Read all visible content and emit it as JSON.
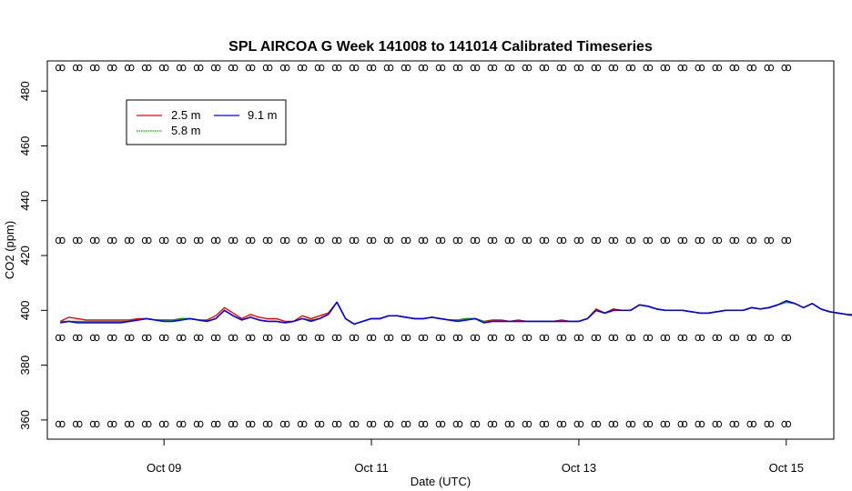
{
  "chart_data": {
    "type": "line",
    "title": "SPL AIRCOA G  Week 141008 to 141014  Calibrated Timeseries",
    "xlabel": "Date (UTC)",
    "ylabel": "CO2 (ppm)",
    "xlim": [
      "2014-10-07T21:00",
      "2014-10-15T11:00"
    ],
    "ylim": [
      353,
      491
    ],
    "x_ticks": [
      {
        "label": "Oct 09",
        "date": "2014-10-09T00:00"
      },
      {
        "label": "Oct 11",
        "date": "2014-10-11T00:00"
      },
      {
        "label": "Oct 13",
        "date": "2014-10-13T00:00"
      },
      {
        "label": "Oct 15",
        "date": "2014-10-15T00:00"
      }
    ],
    "y_ticks": [
      360,
      380,
      400,
      420,
      440,
      460,
      480
    ],
    "grid": false,
    "legend_position": "top-left",
    "legend": [
      {
        "label": "2.5 m",
        "color": "#ff0000"
      },
      {
        "label": "5.8 m",
        "color": "#00aa00"
      },
      {
        "label": "9.1 m",
        "color": "#0000ff"
      }
    ],
    "x_start": "2014-10-08T00:00",
    "x_step_hours": 2,
    "series": [
      {
        "name": "2.5 m",
        "color": "#ff0000",
        "values": [
          396,
          397.5,
          397,
          396.5,
          396.5,
          396.5,
          396.5,
          396.5,
          396.5,
          397,
          397,
          396.5,
          396.5,
          396.5,
          397,
          397,
          396.5,
          396.5,
          398,
          401,
          399,
          397,
          398.5,
          397.5,
          397,
          397,
          396,
          396,
          398,
          397,
          398,
          399,
          403,
          397,
          395,
          396,
          397,
          397,
          398,
          398,
          397.5,
          397,
          397,
          397.5,
          397,
          396.5,
          396.5,
          397,
          397,
          396,
          396.5,
          396.5,
          396,
          396.5,
          396,
          396,
          396,
          396,
          396.5,
          396,
          396,
          397,
          400.5,
          399,
          400.5,
          400,
          400,
          402,
          401.5,
          400.5,
          400,
          400,
          400,
          399.5,
          399,
          399,
          399.5,
          400,
          400,
          400,
          401,
          400.5,
          401,
          402,
          403,
          402.5,
          401,
          402.5,
          400.5,
          399.5,
          399,
          398.5,
          398.5,
          399,
          399,
          399.5,
          399.5,
          400,
          400,
          401,
          403,
          401,
          400.5,
          401,
          399.5,
          399,
          399,
          398,
          397.5,
          397.5,
          397.5,
          397,
          397,
          397,
          397.5,
          397.5,
          398,
          398.5,
          399,
          399.5,
          400,
          401,
          400,
          399.5,
          399.5,
          401,
          399,
          400,
          399,
          400,
          401,
          398.5,
          397,
          396,
          396,
          396,
          395.5,
          396,
          396,
          396,
          397,
          398,
          396.5,
          399,
          396,
          395.5,
          395,
          395,
          395,
          395,
          395,
          395.5,
          395,
          395,
          395,
          395,
          395.5,
          396,
          396,
          396.5,
          398,
          397,
          396,
          396,
          396,
          396,
          396
        ]
      },
      {
        "name": "5.8 m",
        "color": "#00aa00",
        "values": [
          396,
          396,
          396,
          396,
          396,
          396,
          396,
          396,
          396,
          396.5,
          397,
          396.5,
          396.5,
          396.5,
          397,
          397,
          396.5,
          396,
          397,
          400,
          398,
          396.5,
          397.5,
          396.5,
          396,
          396,
          395.5,
          396,
          397,
          396.5,
          397,
          398.5,
          403,
          397,
          395,
          396,
          397,
          397,
          398,
          398,
          397.5,
          397,
          397,
          397.5,
          397,
          396.5,
          396.5,
          397,
          397,
          396,
          396,
          396,
          396,
          396,
          396,
          396,
          396,
          396,
          396,
          396,
          396,
          397,
          400,
          399,
          400,
          400,
          400,
          402,
          401.5,
          400.5,
          400,
          400,
          400,
          399.5,
          399,
          399,
          399.5,
          400,
          400,
          400,
          401,
          400.5,
          401,
          402,
          403,
          402.5,
          401,
          402.5,
          400.5,
          399.5,
          399,
          398.5,
          398,
          398,
          398.5,
          399,
          399,
          399.5,
          399.5,
          400,
          402,
          400,
          399,
          400,
          398.5,
          398.5,
          398.5,
          398,
          397.5,
          397.5,
          397.5,
          397,
          397,
          397,
          397.5,
          397.5,
          398,
          398.5,
          399,
          399.5,
          400,
          401,
          400,
          399.5,
          399.5,
          400,
          398.5,
          400,
          399,
          400,
          400.5,
          398,
          397,
          396,
          396,
          396,
          395.5,
          396,
          396,
          396,
          397,
          398,
          396,
          399,
          396,
          395.5,
          395,
          395,
          395,
          395,
          395,
          395.5,
          395,
          395,
          395,
          395,
          395.5,
          396,
          396,
          396,
          397,
          396.5,
          396,
          396,
          396,
          396,
          396
        ]
      },
      {
        "name": "9.1 m",
        "color": "#0000ff",
        "values": [
          395.5,
          396,
          395.5,
          395.5,
          395.5,
          395.5,
          395.5,
          395.5,
          396,
          396.5,
          397,
          396.5,
          396,
          396,
          396.5,
          397,
          396.5,
          396,
          397,
          400,
          398,
          396.5,
          397.5,
          396.5,
          396,
          396,
          395.5,
          396,
          397,
          396,
          397,
          398.5,
          403,
          397,
          395,
          396,
          397,
          397,
          398,
          398,
          397.5,
          397,
          397,
          397.5,
          397,
          396.5,
          396,
          396.5,
          397,
          395.5,
          396,
          396,
          396,
          396,
          396,
          396,
          396,
          396,
          396,
          396,
          396,
          397,
          400,
          399,
          400,
          400,
          400,
          402,
          401.5,
          400.5,
          400,
          400,
          400,
          399.5,
          399,
          399,
          399.5,
          400,
          400,
          400,
          401,
          400.5,
          401,
          402,
          403.5,
          402.5,
          401,
          402.5,
          400.5,
          399.5,
          399,
          398.5,
          398,
          398,
          398.5,
          399,
          399,
          399.5,
          399.5,
          400,
          403.5,
          401,
          399.5,
          401,
          399,
          399,
          399,
          398,
          397.5,
          397.5,
          397.5,
          397,
          397,
          397,
          397.5,
          397.5,
          398,
          398.5,
          399,
          399.5,
          400,
          401.5,
          400,
          399.5,
          399.5,
          402,
          400,
          401,
          400,
          401,
          400.5,
          398,
          397,
          396,
          396,
          396,
          395.5,
          396,
          396,
          396,
          397,
          398,
          396,
          403,
          396,
          395.5,
          395,
          395,
          395,
          395,
          395,
          395.5,
          395,
          395,
          395,
          395,
          395.5,
          396,
          396,
          396,
          397,
          396.5,
          396,
          396,
          396,
          396,
          396
        ]
      }
    ],
    "reference_markers": {
      "y_levels": [
        488.5,
        425.5,
        390,
        358.5
      ],
      "step_hours": 4
    }
  }
}
